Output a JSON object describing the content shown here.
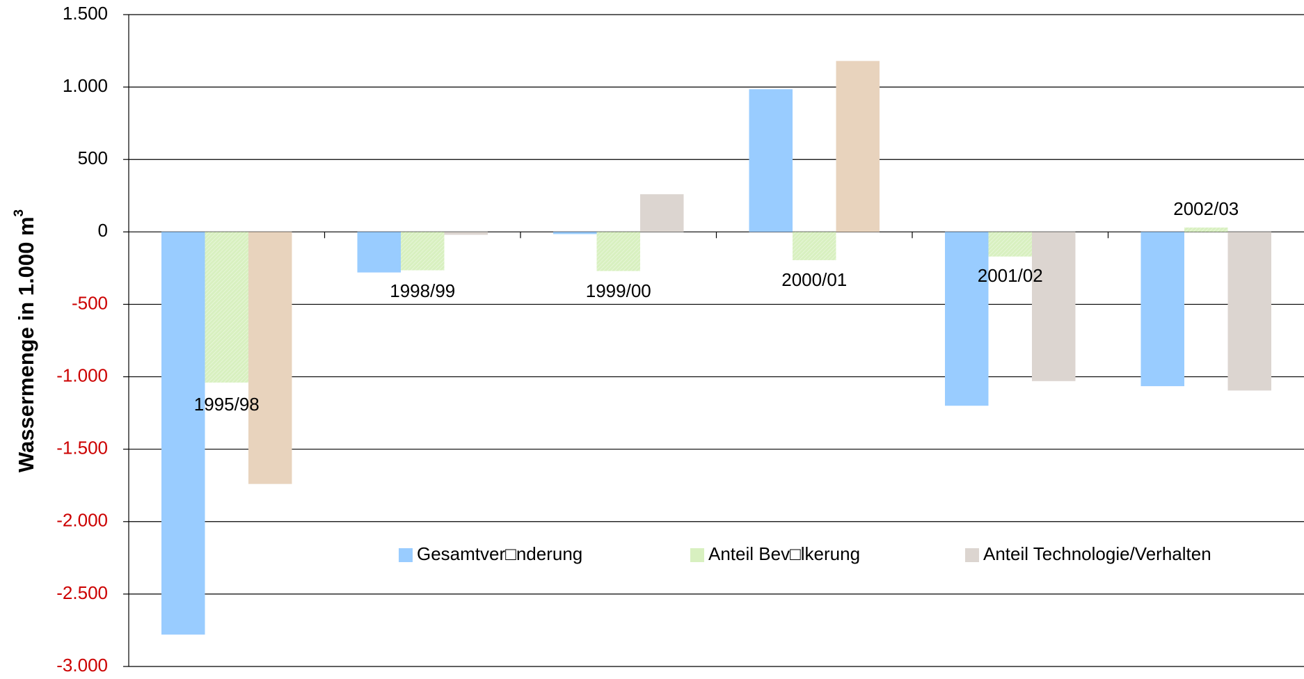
{
  "chart_data": {
    "type": "bar",
    "ylabel": "Wassermenge in 1.000 m",
    "ylabel_sup": "3",
    "categories": [
      "1995/98",
      "1998/99",
      "1999/00",
      "2000/01",
      "2001/02",
      "2002/03"
    ],
    "series": [
      {
        "name": "Gesamtver□nderung",
        "color": "#99ccff",
        "values": [
          -2780,
          -280,
          -15,
          985,
          -1200,
          -1065
        ]
      },
      {
        "name": "Anteil Bev□lkerung",
        "color": "#d8f0c0",
        "values": [
          -1040,
          -265,
          -270,
          -195,
          -170,
          30
        ]
      },
      {
        "name": "Anteil Technologie/Verhalten",
        "color": "#dcd5d0",
        "colors": [
          "#e8d3bd",
          "#dcd5d0",
          "#dcd5d0",
          "#e8d3bd",
          "#dcd5d0",
          "#dcd5d0"
        ],
        "values": [
          -1740,
          -20,
          260,
          1180,
          -1030,
          -1095
        ]
      }
    ],
    "ylim": [
      -3000,
      1500
    ],
    "yticks": [
      {
        "value": 1500,
        "label": "1.500"
      },
      {
        "value": 1000,
        "label": "1.000"
      },
      500,
      0,
      -500,
      {
        "value": -1000,
        "label": "-1.000"
      },
      {
        "value": -1500,
        "label": "-1.500"
      },
      {
        "value": -2000,
        "label": "-2.000"
      },
      {
        "value": -2500,
        "label": "-2.500"
      },
      {
        "value": -3000,
        "label": "-3.000"
      }
    ],
    "negative_tick_color": "#cc0000",
    "grid": true
  }
}
